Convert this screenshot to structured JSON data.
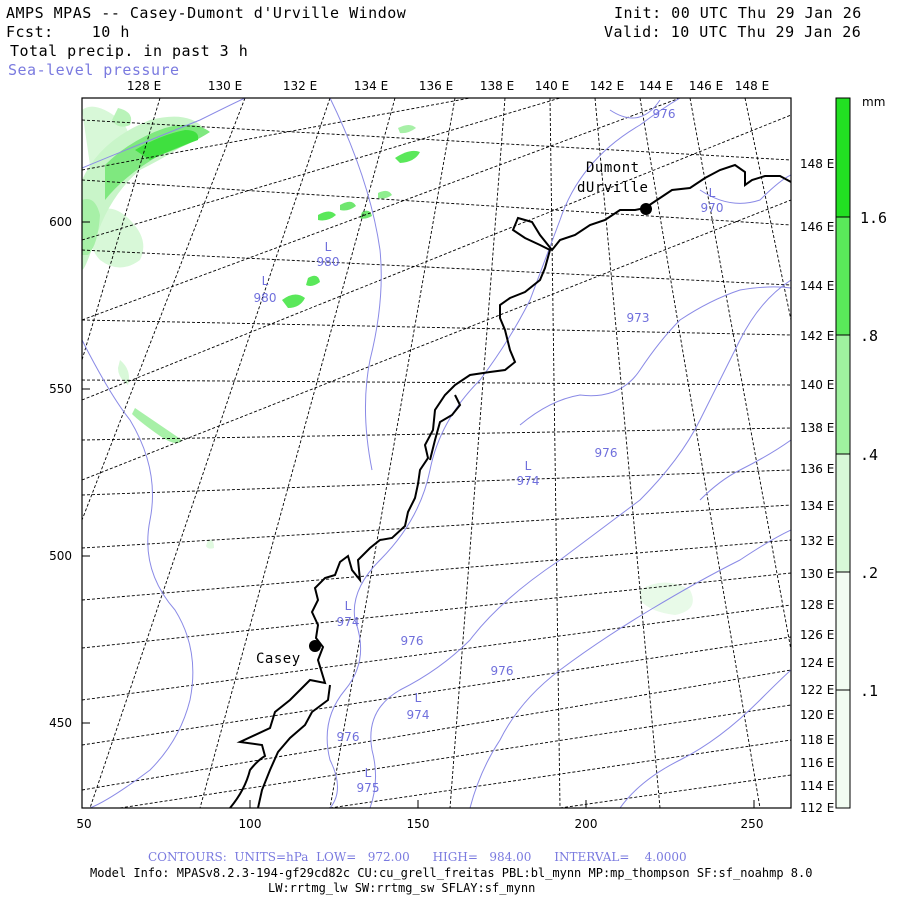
{
  "header": {
    "title": "AMPS MPAS -- Casey-Dumont d'Urville Window",
    "fcst": "Fcst:    10 h",
    "init": "Init: 00 UTC Thu 29 Jan 26",
    "valid": "Valid: 10 UTC Thu 29 Jan 26",
    "field1": "Total precip. in past 3 h",
    "field2": "Sea-level pressure"
  },
  "axes": {
    "x_ticks": [
      "50",
      "100",
      "150",
      "200",
      "250"
    ],
    "y_ticks": [
      "450",
      "500",
      "550",
      "600"
    ],
    "top_lon_labels": [
      "128 E",
      "130 E",
      "132 E",
      "134 E",
      "136 E",
      "138 E",
      "140 E",
      "142 E",
      "144 E",
      "146 E",
      "148 E"
    ],
    "right_lon_labels": [
      "148 E",
      "146 E",
      "144 E",
      "142 E",
      "140 E",
      "138 E",
      "136 E",
      "134 E",
      "132 E",
      "130 E",
      "128 E",
      "126 E",
      "124 E",
      "122 E",
      "120 E",
      "118 E",
      "116 E",
      "114 E",
      "112 E"
    ]
  },
  "stations": [
    {
      "name_line1": "Dumont",
      "name_line2": "dUrville"
    },
    {
      "name_line1": "Casey",
      "name_line2": ""
    }
  ],
  "pressure_labels": [
    {
      "letter": "L",
      "value": "970"
    },
    {
      "letter": "",
      "value": "976"
    },
    {
      "letter": "L",
      "value": "980"
    },
    {
      "letter": "L",
      "value": "980"
    },
    {
      "letter": "",
      "value": "973"
    },
    {
      "letter": "L",
      "value": "974"
    },
    {
      "letter": "",
      "value": "976"
    },
    {
      "letter": "L",
      "value": "974"
    },
    {
      "letter": "",
      "value": "976"
    },
    {
      "letter": "",
      "value": "976"
    },
    {
      "letter": "L",
      "value": "974"
    },
    {
      "letter": "",
      "value": "976"
    },
    {
      "letter": "L",
      "value": "975"
    }
  ],
  "colorbar": {
    "unit": "mm",
    "labels": [
      "1.6",
      ".8",
      ".4",
      ".2",
      ".1"
    ],
    "colors": [
      "#22e022",
      "#5aea5a",
      "#9ff29f",
      "#d8f8d8",
      "#f2fcf2"
    ]
  },
  "footer": {
    "contours": "CONTOURS:  UNITS=hPa  LOW=   972.00      HIGH=   984.00      INTERVAL=    4.0000",
    "model_info": "Model Info: MPASv8.2.3-194-gf29cd82c CU:cu_grell_freitas PBL:bl_mynn MP:mp_thompson SF:sf_noahmp 8.0",
    "model_info2": "LW:rrtmg_lw SW:rrtmg_sw SFLAY:sf_mynn"
  }
}
